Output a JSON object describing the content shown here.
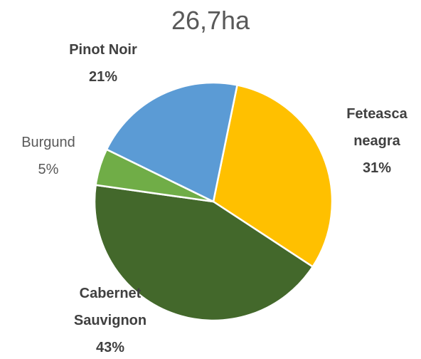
{
  "chart_data": {
    "type": "pie",
    "title": "26,7ha",
    "categories": [
      "Feteasca neagra",
      "Cabernet Sauvignon",
      "Burgund",
      "Pinot Noir"
    ],
    "values": [
      31,
      43,
      5,
      21
    ],
    "value_labels": [
      "31%",
      "43%",
      "5%",
      "21%"
    ],
    "colors": [
      "#FFC000",
      "#43682B",
      "#70AD47",
      "#5B9BD5"
    ]
  }
}
